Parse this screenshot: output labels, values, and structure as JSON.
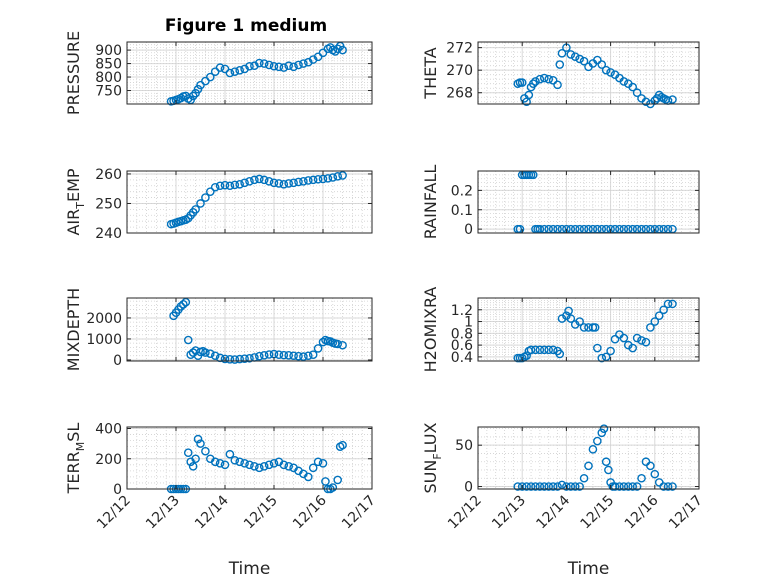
{
  "figure": {
    "background": "#ffffff",
    "marker_color": "#0072BD",
    "axis_color": "#262626"
  },
  "chart_data": [
    {
      "id": "pressure",
      "type": "scatter",
      "title": "Figure 1 medium",
      "ylabel": "PRESSURE",
      "ylabel_sub": "",
      "xlim": [
        0,
        5
      ],
      "ylim": [
        700,
        930
      ],
      "yticks": [
        750,
        800,
        850,
        900
      ],
      "yticklabels": [
        "750",
        "800",
        "850",
        "900"
      ],
      "grid": true,
      "x": [
        0.9,
        0.95,
        1.0,
        1.05,
        1.1,
        1.15,
        1.2,
        1.25,
        1.3,
        1.35,
        1.4,
        1.45,
        1.5,
        1.6,
        1.7,
        1.8,
        1.9,
        2.0,
        2.1,
        2.2,
        2.3,
        2.4,
        2.5,
        2.6,
        2.7,
        2.8,
        2.9,
        3.0,
        3.1,
        3.2,
        3.3,
        3.4,
        3.5,
        3.6,
        3.7,
        3.8,
        3.9,
        4.0,
        4.1,
        4.15,
        4.2,
        4.25,
        4.3,
        4.35,
        4.4
      ],
      "y": [
        710,
        712,
        715,
        718,
        722,
        728,
        730,
        720,
        715,
        730,
        740,
        755,
        770,
        785,
        800,
        820,
        835,
        830,
        815,
        820,
        825,
        830,
        840,
        842,
        852,
        850,
        845,
        840,
        838,
        835,
        842,
        838,
        845,
        850,
        855,
        865,
        875,
        890,
        905,
        910,
        900,
        895,
        905,
        915,
        900
      ]
    },
    {
      "id": "theta",
      "type": "scatter",
      "ylabel": "THETA",
      "ylabel_sub": "",
      "xlim": [
        0,
        5
      ],
      "ylim": [
        267.0,
        272.5
      ],
      "yticks": [
        268,
        270,
        272
      ],
      "yticklabels": [
        "268",
        "270",
        "272"
      ],
      "grid": true,
      "x": [
        0.9,
        0.95,
        1.0,
        1.05,
        1.1,
        1.15,
        1.2,
        1.25,
        1.3,
        1.4,
        1.5,
        1.6,
        1.7,
        1.8,
        1.85,
        1.9,
        2.0,
        2.1,
        2.2,
        2.3,
        2.4,
        2.5,
        2.6,
        2.7,
        2.8,
        2.9,
        3.0,
        3.1,
        3.2,
        3.3,
        3.4,
        3.5,
        3.6,
        3.7,
        3.8,
        3.9,
        4.0,
        4.05,
        4.1,
        4.15,
        4.2,
        4.25,
        4.3,
        4.4
      ],
      "y": [
        268.8,
        268.9,
        268.9,
        267.5,
        267.2,
        267.8,
        268.5,
        268.8,
        269.0,
        269.2,
        269.3,
        269.2,
        269.1,
        268.7,
        270.5,
        271.5,
        272.0,
        271.4,
        271.2,
        271.0,
        270.8,
        270.3,
        270.6,
        270.9,
        270.5,
        270.0,
        269.8,
        269.6,
        269.3,
        269.0,
        268.8,
        268.5,
        268.0,
        267.5,
        267.2,
        267.0,
        267.3,
        267.5,
        267.8,
        267.6,
        267.5,
        267.4,
        267.3,
        267.4
      ]
    },
    {
      "id": "air_temp",
      "type": "scatter",
      "ylabel": "AIR",
      "ylabel_sub": "T",
      "ylabel_tail": "EMP",
      "xlim": [
        0,
        5
      ],
      "ylim": [
        240,
        261
      ],
      "yticks": [
        240,
        250,
        260
      ],
      "yticklabels": [
        "240",
        "250",
        "260"
      ],
      "grid": true,
      "x": [
        0.9,
        0.95,
        1.0,
        1.05,
        1.1,
        1.15,
        1.2,
        1.25,
        1.3,
        1.35,
        1.4,
        1.5,
        1.6,
        1.7,
        1.8,
        1.9,
        2.0,
        2.1,
        2.2,
        2.3,
        2.4,
        2.5,
        2.6,
        2.7,
        2.8,
        2.9,
        3.0,
        3.1,
        3.2,
        3.3,
        3.4,
        3.5,
        3.6,
        3.7,
        3.8,
        3.9,
        4.0,
        4.1,
        4.2,
        4.3,
        4.4
      ],
      "y": [
        243,
        243.2,
        243.5,
        243.8,
        244,
        244.3,
        244.5,
        245,
        246,
        247,
        248,
        250,
        252,
        254,
        255.5,
        256,
        256.2,
        256,
        256.3,
        256.5,
        257,
        257.5,
        258,
        258.3,
        258,
        257.5,
        257,
        256.8,
        256.5,
        256.8,
        257,
        257.3,
        257.5,
        257.8,
        258,
        258.2,
        258.3,
        258.5,
        258.8,
        259.2,
        259.5
      ]
    },
    {
      "id": "rainfall",
      "type": "scatter",
      "ylabel": "RAINFALL",
      "ylabel_sub": "",
      "xlim": [
        0,
        5
      ],
      "ylim": [
        -0.02,
        0.3
      ],
      "yticks": [
        0,
        0.1,
        0.2
      ],
      "yticklabels": [
        "0",
        "0.1",
        "0.2"
      ],
      "grid": true,
      "x": [
        0.9,
        0.95,
        1.0,
        1.05,
        1.1,
        1.15,
        1.2,
        1.25,
        1.3,
        1.35,
        1.4,
        1.5,
        1.6,
        1.7,
        1.8,
        1.9,
        2.0,
        2.1,
        2.2,
        2.3,
        2.4,
        2.5,
        2.6,
        2.7,
        2.8,
        2.9,
        3.0,
        3.1,
        3.2,
        3.3,
        3.4,
        3.5,
        3.6,
        3.7,
        3.8,
        3.9,
        4.0,
        4.1,
        4.2,
        4.3,
        4.4
      ],
      "y": [
        0,
        0,
        0.28,
        0.28,
        0.28,
        0.28,
        0.28,
        0.28,
        0,
        0,
        0,
        0,
        0,
        0,
        0,
        0,
        0,
        0,
        0,
        0,
        0,
        0,
        0,
        0,
        0,
        0,
        0,
        0,
        0,
        0,
        0,
        0,
        0,
        0,
        0,
        0,
        0,
        0,
        0,
        0,
        0
      ]
    },
    {
      "id": "mixdepth",
      "type": "scatter",
      "ylabel": "MIXDEPTH",
      "ylabel_sub": "",
      "xlim": [
        0,
        5
      ],
      "ylim": [
        -50,
        2950
      ],
      "yticks": [
        0,
        1000,
        2000
      ],
      "yticklabels": [
        "0",
        "1000",
        "2000"
      ],
      "grid": true,
      "x": [
        0.95,
        1.0,
        1.05,
        1.1,
        1.15,
        1.2,
        1.25,
        1.3,
        1.35,
        1.4,
        1.45,
        1.5,
        1.55,
        1.6,
        1.7,
        1.8,
        1.9,
        2.0,
        2.1,
        2.2,
        2.3,
        2.4,
        2.5,
        2.6,
        2.7,
        2.8,
        2.9,
        3.0,
        3.1,
        3.2,
        3.3,
        3.4,
        3.5,
        3.6,
        3.7,
        3.8,
        3.9,
        4.0,
        4.05,
        4.1,
        4.15,
        4.2,
        4.25,
        4.3,
        4.4
      ],
      "y": [
        2100,
        2250,
        2400,
        2550,
        2650,
        2750,
        950,
        250,
        350,
        450,
        200,
        380,
        420,
        350,
        300,
        200,
        100,
        50,
        30,
        20,
        40,
        60,
        80,
        120,
        180,
        220,
        260,
        280,
        250,
        230,
        220,
        200,
        180,
        160,
        200,
        250,
        550,
        850,
        950,
        900,
        880,
        820,
        780,
        760,
        700
      ]
    },
    {
      "id": "h2omixra",
      "type": "scatter",
      "ylabel": "H2OMIXRA",
      "ylabel_sub": "",
      "xlim": [
        0,
        5
      ],
      "ylim": [
        0.33,
        1.4
      ],
      "yticks": [
        0.4,
        0.6,
        0.8,
        1,
        1.2
      ],
      "yticklabels": [
        "0.4",
        "0.6",
        "0.8",
        "1",
        "1.2"
      ],
      "grid": true,
      "x": [
        0.9,
        0.95,
        1.0,
        1.05,
        1.1,
        1.15,
        1.2,
        1.3,
        1.4,
        1.5,
        1.6,
        1.7,
        1.8,
        1.85,
        1.9,
        2.0,
        2.05,
        2.1,
        2.2,
        2.3,
        2.4,
        2.5,
        2.6,
        2.65,
        2.7,
        2.8,
        2.9,
        3.0,
        3.1,
        3.2,
        3.3,
        3.4,
        3.5,
        3.6,
        3.7,
        3.8,
        3.9,
        4.0,
        4.1,
        4.2,
        4.3,
        4.4
      ],
      "y": [
        0.38,
        0.38,
        0.38,
        0.4,
        0.42,
        0.5,
        0.52,
        0.52,
        0.52,
        0.52,
        0.52,
        0.52,
        0.5,
        0.45,
        1.05,
        1.1,
        1.18,
        1.05,
        0.95,
        1.0,
        0.9,
        0.9,
        0.9,
        0.9,
        0.55,
        0.38,
        0.4,
        0.5,
        0.7,
        0.78,
        0.72,
        0.6,
        0.55,
        0.72,
        0.68,
        0.65,
        0.9,
        1.0,
        1.1,
        1.2,
        1.3,
        1.3
      ]
    },
    {
      "id": "terr_msl",
      "type": "scatter",
      "ylabel": "TERR",
      "ylabel_sub": "M",
      "ylabel_tail": "SL",
      "xlim": [
        0,
        5
      ],
      "ylim": [
        0,
        410
      ],
      "yticks": [
        0,
        200,
        400
      ],
      "yticklabels": [
        "0",
        "200",
        "400"
      ],
      "grid": true,
      "x": [
        0.9,
        0.95,
        1.0,
        1.05,
        1.1,
        1.15,
        1.2,
        1.25,
        1.3,
        1.35,
        1.4,
        1.45,
        1.5,
        1.6,
        1.7,
        1.8,
        1.9,
        2.0,
        2.1,
        2.2,
        2.3,
        2.4,
        2.5,
        2.6,
        2.7,
        2.8,
        2.9,
        3.0,
        3.1,
        3.2,
        3.3,
        3.4,
        3.5,
        3.6,
        3.7,
        3.8,
        3.9,
        4.0,
        4.05,
        4.1,
        4.15,
        4.2,
        4.3,
        4.35,
        4.4
      ],
      "y": [
        0,
        0,
        0,
        0,
        0,
        0,
        0,
        240,
        180,
        150,
        200,
        330,
        300,
        250,
        200,
        180,
        170,
        160,
        230,
        190,
        180,
        170,
        160,
        150,
        140,
        150,
        160,
        170,
        180,
        160,
        150,
        140,
        120,
        100,
        80,
        140,
        180,
        170,
        50,
        0,
        0,
        10,
        60,
        280,
        290
      ]
    },
    {
      "id": "sun_flux",
      "type": "scatter",
      "ylabel": "SUN",
      "ylabel_sub": "F",
      "ylabel_tail": "LUX",
      "xlim": [
        0,
        5
      ],
      "ylim": [
        -3,
        72
      ],
      "yticks": [
        0,
        50
      ],
      "yticklabels": [
        "0",
        "50"
      ],
      "grid": true,
      "x": [
        0.9,
        1.0,
        1.1,
        1.2,
        1.3,
        1.4,
        1.5,
        1.6,
        1.7,
        1.8,
        1.9,
        2.0,
        2.1,
        2.2,
        2.3,
        2.4,
        2.5,
        2.6,
        2.7,
        2.8,
        2.85,
        2.9,
        2.95,
        3.0,
        3.05,
        3.1,
        3.2,
        3.3,
        3.4,
        3.5,
        3.6,
        3.7,
        3.8,
        3.9,
        4.0,
        4.1,
        4.2,
        4.3,
        4.4
      ],
      "y": [
        0,
        0,
        0,
        0,
        0,
        0,
        0,
        0,
        0,
        0,
        2,
        0,
        0,
        0,
        0,
        10,
        25,
        45,
        55,
        65,
        70,
        30,
        20,
        5,
        0,
        0,
        0,
        0,
        0,
        0,
        0,
        10,
        30,
        25,
        15,
        5,
        0,
        0,
        0
      ]
    }
  ],
  "shared_x": {
    "xlabel": "Time",
    "ticks": [
      0,
      1,
      2,
      3,
      4,
      5
    ],
    "ticklabels": [
      "12/12",
      "12/13",
      "12/14",
      "12/15",
      "12/16",
      "12/17"
    ]
  }
}
